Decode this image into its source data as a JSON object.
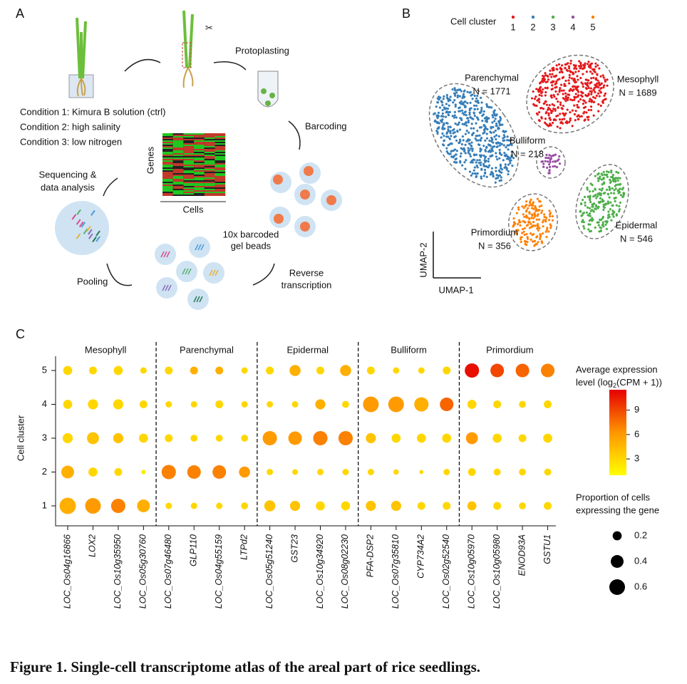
{
  "figure": {
    "panel_a": {
      "label": "A",
      "conditions": [
        "Condition 1: Kimura B solution (ctrl)",
        "Condition 2: high salinity",
        "Condition 3: low nitrogen"
      ],
      "protoplasting": "Protoplasting",
      "barcoding": "Barcoding",
      "beads": [
        "10x barcoded",
        "gel beads"
      ],
      "reverse_transcription": [
        "Reverse",
        "transcription"
      ],
      "pooling": "Pooling",
      "sequencing": [
        "Sequencing &",
        "data analysis"
      ],
      "heatmap_rows": "Genes",
      "heatmap_cols": "Cells"
    },
    "panel_b": {
      "label": "B",
      "legend_title": "Cell cluster",
      "legend": [
        {
          "label": "1",
          "color": "#e41a1c"
        },
        {
          "label": "2",
          "color": "#377eb8"
        },
        {
          "label": "3",
          "color": "#4daf4a"
        },
        {
          "label": "4",
          "color": "#984ea3"
        },
        {
          "label": "5",
          "color": "#ff7f00"
        }
      ],
      "clusters": [
        {
          "name": "Mesophyll",
          "n": "N = 1689"
        },
        {
          "name": "Parenchymal",
          "n": "N = 1771"
        },
        {
          "name": "Epidermal",
          "n": "N = 546"
        },
        {
          "name": "Bulliform",
          "n": "N = 218"
        },
        {
          "name": "Primordium",
          "n": "N = 356"
        }
      ],
      "xlabel": "UMAP-1",
      "ylabel": "UMAP-2"
    },
    "panel_c_label": "C",
    "caption": "Figure 1. Single-cell transcriptome atlas of the areal part of rice seedlings."
  },
  "chart_data": {
    "type": "dotplot",
    "ylabel": "Cell cluster",
    "groups": [
      "Mesophyll",
      "Parenchymal",
      "Epidermal",
      "Bulliform",
      "Primordium"
    ],
    "categories": [
      "LOC_Os04g16866",
      "LOX2",
      "LOC_Os10g35950",
      "LOC_Os05g30760",
      "LOC_Os07g46480",
      "GLP110",
      "LOC_Os04g55159",
      "LTPd2",
      "LOC_Os05g51240",
      "GST23",
      "LOC_Os10g34920",
      "LOC_Os08g02230",
      "PFA-DSP2",
      "LOC_Os07g35810",
      "CYP734A2",
      "LOC_Os02g52540",
      "LOC_Os10g05970",
      "LOC_Os10g05980",
      "ENOD93A",
      "GSTU1"
    ],
    "series": [
      {
        "name": "1",
        "size": [
          0.65,
          0.6,
          0.5,
          0.4,
          0.1,
          0.1,
          0.1,
          0.12,
          0.3,
          0.25,
          0.2,
          0.2,
          0.25,
          0.25,
          0.15,
          0.15,
          0.2,
          0.15,
          0.12,
          0.15
        ],
        "expression": [
          5,
          6,
          7,
          5,
          3,
          3,
          3,
          3,
          4,
          4,
          3,
          3,
          4,
          4,
          3,
          3,
          4,
          3,
          3,
          3
        ]
      },
      {
        "name": "2",
        "size": [
          0.4,
          0.2,
          0.15,
          0.05,
          0.5,
          0.45,
          0.45,
          0.3,
          0.1,
          0.08,
          0.1,
          0.1,
          0.1,
          0.07,
          0.04,
          0.1,
          0.15,
          0.12,
          0.12,
          0.12
        ],
        "expression": [
          5,
          3,
          3,
          2,
          7,
          7,
          7,
          6,
          3,
          3,
          3,
          3,
          3,
          3,
          3,
          3,
          3,
          3,
          3,
          3
        ]
      },
      {
        "name": "3",
        "size": [
          0.25,
          0.35,
          0.25,
          0.2,
          0.15,
          0.12,
          0.12,
          0.12,
          0.5,
          0.45,
          0.5,
          0.5,
          0.25,
          0.2,
          0.2,
          0.2,
          0.35,
          0.2,
          0.15,
          0.2
        ],
        "expression": [
          3,
          4,
          4,
          3,
          3,
          3,
          3,
          3,
          6,
          6,
          7,
          7,
          4,
          3,
          3,
          3,
          6,
          3,
          3,
          3
        ]
      },
      {
        "name": "4",
        "size": [
          0.2,
          0.25,
          0.25,
          0.15,
          0.1,
          0.1,
          0.15,
          0.1,
          0.1,
          0.1,
          0.25,
          0.12,
          0.6,
          0.6,
          0.5,
          0.45,
          0.2,
          0.15,
          0.12,
          0.15
        ],
        "expression": [
          3,
          3,
          3,
          3,
          3,
          3,
          3,
          3,
          3,
          3,
          5,
          3,
          6,
          6,
          5,
          8,
          3,
          3,
          3,
          3
        ]
      },
      {
        "name": "5",
        "size": [
          0.2,
          0.15,
          0.2,
          0.1,
          0.15,
          0.15,
          0.15,
          0.1,
          0.15,
          0.3,
          0.15,
          0.3,
          0.15,
          0.1,
          0.1,
          0.15,
          0.5,
          0.45,
          0.45,
          0.45
        ],
        "expression": [
          3,
          3,
          3,
          3,
          3,
          5,
          5,
          3,
          3,
          5,
          3,
          5,
          3,
          3,
          3,
          3,
          11,
          9,
          8,
          7
        ]
      }
    ],
    "colorbar_title": [
      "Average expression",
      "level (log",
      "2",
      "(CPM + 1))"
    ],
    "colorbar_lim": [
      1,
      11.5
    ],
    "colorbar_ticks": [
      3,
      6,
      9
    ],
    "size_title": [
      "Proportion of cells",
      "expressing the gene"
    ],
    "size_legend": [
      0.2,
      0.4,
      0.6
    ]
  }
}
